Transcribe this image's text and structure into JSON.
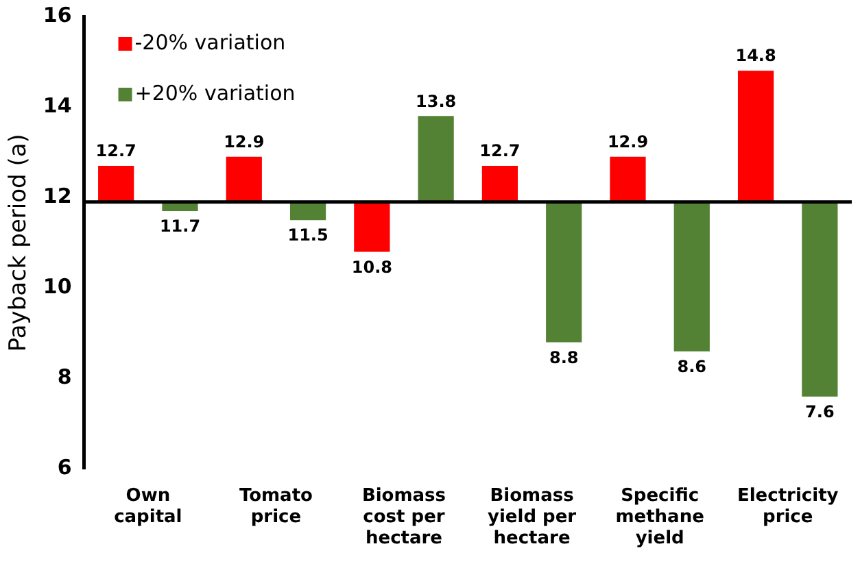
{
  "chart_data": {
    "type": "bar",
    "ylabel": "Payback period (a)",
    "categories": [
      "Own capital",
      "Tomato price",
      "Biomass cost per hectare",
      "Biomass yield per hectare",
      "Specific methane yield",
      "Electricity price"
    ],
    "series": [
      {
        "name": "-20% variation",
        "color": "#ff0000",
        "base": [
          11.9,
          11.9,
          11.9,
          11.9,
          11.9,
          11.9
        ],
        "values": [
          0.8,
          1.0,
          -1.1,
          0.8,
          1.0,
          2.9
        ],
        "value_labels": [
          "12.7",
          "12.9",
          "10.8",
          "12.7",
          "12.9",
          "14.8"
        ]
      },
      {
        "name": "+20% variation",
        "color": "#548235",
        "base": [
          11.9,
          11.9,
          11.9,
          11.9,
          11.9,
          11.9
        ],
        "values": [
          -0.2,
          -0.4,
          1.9,
          -3.1,
          -3.3,
          -4.3
        ],
        "value_labels": [
          "11.7",
          "11.5",
          "13.8",
          "8.8",
          "8.6",
          "7.6"
        ]
      }
    ],
    "ylim": [
      6,
      16
    ],
    "yticks": [
      6,
      8,
      10,
      12,
      14,
      16
    ],
    "grid": false,
    "legend": "top left",
    "ref_lines": [
      {
        "axis": "y",
        "value": 11.9,
        "color": "#000000"
      }
    ]
  }
}
